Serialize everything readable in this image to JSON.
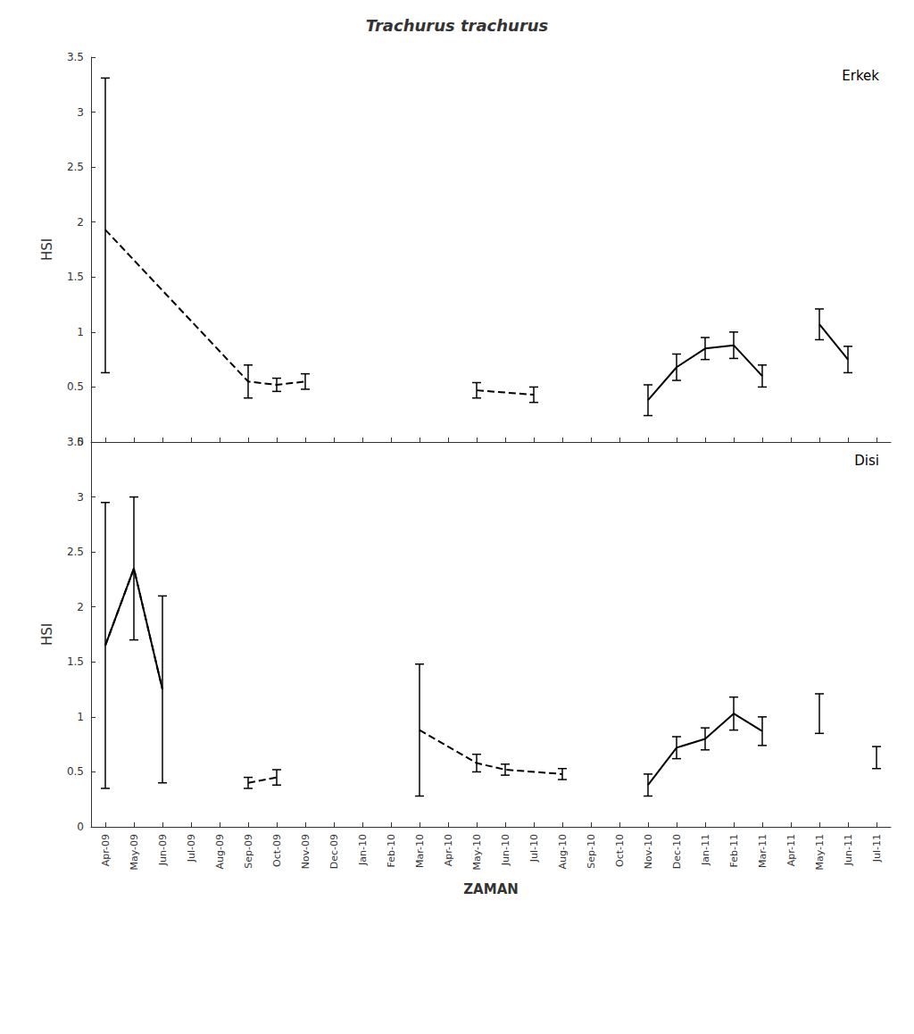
{
  "chart_data": [
    {
      "type": "line",
      "title": "Trachurus trachurus",
      "ylabel": "HSI",
      "annotations": [
        "Erkek"
      ],
      "color": "#000000",
      "grid": false,
      "tick_labels": "y",
      "categories": [
        "Apr-09",
        "May-09",
        "Jun-09",
        "Jul-09",
        "Aug-09",
        "Sep-09",
        "Oct-09",
        "Nov-09",
        "Dec-09",
        "Jan-10",
        "Feb-10",
        "Mar-10",
        "Apr-10",
        "May-10",
        "Jun-10",
        "Jul-10",
        "Aug-10",
        "Sep-10",
        "Oct-10",
        "Nov-10",
        "Dec-10",
        "Jan-11",
        "Feb-11",
        "Mar-11",
        "Apr-11",
        "May-11",
        "Jun-11",
        "Jul-11"
      ],
      "ylim": [
        0,
        3.5
      ],
      "yticks": [
        0,
        0.5,
        1,
        1.5,
        2,
        2.5,
        3,
        3.5
      ],
      "series": [
        {
          "type": "line",
          "line_style": "dashed",
          "values": [
            1.93,
            null,
            null,
            null,
            null,
            0.55,
            0.52,
            0.55,
            null,
            null,
            null,
            null,
            null,
            null,
            null,
            null,
            null,
            null,
            null,
            null,
            null,
            null,
            null,
            null,
            null,
            null,
            null,
            null
          ]
        },
        {
          "type": "line",
          "line_style": "dashed",
          "values": [
            null,
            null,
            null,
            null,
            null,
            null,
            null,
            null,
            null,
            null,
            null,
            null,
            null,
            0.47,
            null,
            0.43,
            null,
            null,
            null,
            null,
            null,
            null,
            null,
            null,
            null,
            null,
            null,
            null
          ]
        },
        {
          "type": "line",
          "line_style": "solid",
          "values": [
            null,
            null,
            null,
            null,
            null,
            null,
            null,
            null,
            null,
            null,
            null,
            null,
            null,
            null,
            null,
            null,
            null,
            null,
            null,
            0.38,
            0.68,
            0.85,
            0.88,
            0.6,
            null,
            null,
            null,
            null
          ]
        },
        {
          "type": "line",
          "line_style": "solid",
          "values": [
            null,
            null,
            null,
            null,
            null,
            null,
            null,
            null,
            null,
            null,
            null,
            null,
            null,
            null,
            null,
            null,
            null,
            null,
            null,
            null,
            null,
            null,
            null,
            null,
            null,
            1.07,
            0.75,
            null
          ]
        },
        {
          "type": "errorbar",
          "values": [
            1.93,
            null,
            null,
            null,
            null,
            0.55,
            0.52,
            0.55,
            null,
            null,
            null,
            null,
            null,
            0.47,
            null,
            0.43,
            null,
            null,
            null,
            0.38,
            0.68,
            0.85,
            0.88,
            0.6,
            null,
            1.07,
            0.75,
            null
          ],
          "err_lo": [
            1.3,
            null,
            null,
            null,
            null,
            0.15,
            0.06,
            0.07,
            null,
            null,
            null,
            null,
            null,
            0.07,
            null,
            0.07,
            null,
            null,
            null,
            0.14,
            0.12,
            0.1,
            0.12,
            0.1,
            null,
            0.14,
            0.12,
            null
          ],
          "err_hi": [
            1.38,
            null,
            null,
            null,
            null,
            0.15,
            0.06,
            0.07,
            null,
            null,
            null,
            null,
            null,
            0.07,
            null,
            0.07,
            null,
            null,
            null,
            0.14,
            0.12,
            0.1,
            0.12,
            0.1,
            null,
            0.14,
            0.12,
            null
          ]
        }
      ]
    },
    {
      "type": "line",
      "xlabel": "ZAMAN",
      "ylabel": "HSI",
      "annotations": [
        "Disi"
      ],
      "color": "#000000",
      "grid": false,
      "categories": [
        "Apr-09",
        "May-09",
        "Jun-09",
        "Jul-09",
        "Aug-09",
        "Sep-09",
        "Oct-09",
        "Nov-09",
        "Dec-09",
        "Jan-10",
        "Feb-10",
        "Mar-10",
        "Apr-10",
        "May-10",
        "Jun-10",
        "Jul-10",
        "Aug-10",
        "Sep-10",
        "Oct-10",
        "Nov-10",
        "Dec-10",
        "Jan-11",
        "Feb-11",
        "Mar-11",
        "Apr-11",
        "May-11",
        "Jun-11",
        "Jul-11"
      ],
      "ylim": [
        0,
        3.5
      ],
      "yticks": [
        0,
        0.5,
        1,
        1.5,
        2,
        2.5,
        3,
        3.5
      ],
      "series": [
        {
          "type": "line",
          "line_style": "dashed",
          "values": [
            1.65,
            2.35,
            1.25,
            null,
            null,
            null,
            null,
            null,
            null,
            null,
            null,
            null,
            null,
            null,
            null,
            null,
            null,
            null,
            null,
            null,
            null,
            null,
            null,
            null,
            null,
            null,
            null,
            null
          ]
        },
        {
          "type": "line",
          "line_style": "dashed",
          "values": [
            null,
            null,
            null,
            null,
            null,
            0.4,
            0.45,
            null,
            null,
            null,
            null,
            null,
            null,
            null,
            null,
            null,
            null,
            null,
            null,
            null,
            null,
            null,
            null,
            null,
            null,
            null,
            null,
            null
          ]
        },
        {
          "type": "line",
          "line_style": "dashed",
          "values": [
            null,
            null,
            null,
            null,
            null,
            null,
            null,
            null,
            null,
            null,
            null,
            0.88,
            null,
            0.58,
            0.52,
            null,
            0.48,
            null,
            null,
            null,
            null,
            null,
            null,
            null,
            null,
            null,
            null,
            null
          ]
        },
        {
          "type": "line",
          "line_style": "solid",
          "values": [
            1.65,
            2.35,
            1.25,
            null,
            null,
            null,
            null,
            null,
            null,
            null,
            null,
            null,
            null,
            null,
            null,
            null,
            null,
            null,
            null,
            null,
            null,
            null,
            null,
            null,
            null,
            null,
            null,
            null
          ]
        },
        {
          "type": "line",
          "line_style": "solid",
          "values": [
            null,
            null,
            null,
            null,
            null,
            null,
            null,
            null,
            null,
            null,
            null,
            null,
            null,
            null,
            null,
            null,
            null,
            null,
            null,
            0.38,
            0.72,
            0.8,
            1.03,
            0.87,
            null,
            null,
            null,
            null
          ]
        },
        {
          "type": "errorbar",
          "values": [
            1.65,
            2.35,
            1.25,
            null,
            null,
            0.4,
            0.45,
            null,
            null,
            null,
            null,
            0.88,
            null,
            0.58,
            0.52,
            null,
            0.48,
            null,
            null,
            0.38,
            0.72,
            0.8,
            1.03,
            0.87,
            null,
            1.03,
            null,
            0.63
          ],
          "err_lo": [
            1.3,
            0.65,
            0.85,
            null,
            null,
            0.05,
            0.07,
            null,
            null,
            null,
            null,
            0.6,
            null,
            0.08,
            0.05,
            null,
            0.05,
            null,
            null,
            0.1,
            0.1,
            0.1,
            0.15,
            0.13,
            null,
            0.18,
            null,
            0.1
          ],
          "err_hi": [
            1.3,
            0.65,
            0.85,
            null,
            null,
            0.05,
            0.07,
            null,
            null,
            null,
            null,
            0.6,
            null,
            0.08,
            0.05,
            null,
            0.05,
            null,
            null,
            0.1,
            0.1,
            0.1,
            0.15,
            0.13,
            null,
            0.18,
            null,
            0.1
          ]
        }
      ]
    }
  ]
}
